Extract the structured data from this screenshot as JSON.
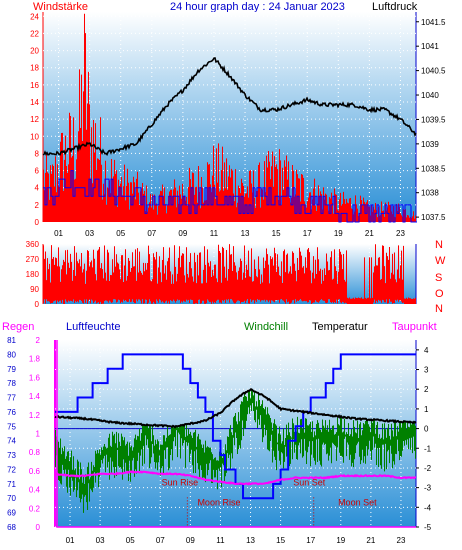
{
  "header": {
    "left_label": "Windstärke",
    "title": "24 hour graph day : 24 Januar 2023",
    "right_label": "Luftdruck"
  },
  "colors": {
    "wind": "#ff0000",
    "wind_gust": "#0000ff",
    "pressure": "#000000",
    "humidity": "#0000ff",
    "windchill": "#008000",
    "temperature": "#000000",
    "dewpoint": "#ff00ff",
    "rain": "#ff00ff",
    "gradient_top": "#ffffff",
    "gradient_bottom": "#2a8fd6"
  },
  "chart_data": [
    {
      "type": "line",
      "panel": "wind_pressure",
      "x_tick_labels": [
        "01",
        "03",
        "05",
        "07",
        "09",
        "11",
        "13",
        "15",
        "17",
        "19",
        "21",
        "23"
      ],
      "x_ticks_hours": [
        1,
        3,
        5,
        7,
        9,
        11,
        13,
        15,
        17,
        19,
        21,
        23
      ],
      "left_axis": {
        "ticks": [
          0,
          2,
          4,
          6,
          8,
          10,
          12,
          14,
          16,
          18,
          20,
          22,
          24
        ],
        "ylim": [
          0,
          24.5
        ]
      },
      "right_axis": {
        "ticks": [
          1037.5,
          1038,
          1038.5,
          1039,
          1039.5,
          1040,
          1040.5,
          1041,
          1041.5
        ],
        "ylim": [
          1037.4,
          1041.7
        ]
      },
      "series": [
        {
          "name": "Windstärke",
          "axis": "left",
          "kind": "gust",
          "x": [
            0,
            0.5,
            1,
            1.5,
            2,
            2.4,
            2.6,
            3,
            3.5,
            4,
            5,
            6,
            7,
            8,
            9,
            10,
            11,
            12,
            13,
            14,
            15,
            16,
            17,
            18,
            19,
            20,
            21,
            22,
            23,
            24
          ],
          "y": [
            7,
            6,
            9,
            11,
            12,
            16,
            24,
            14,
            12,
            8,
            6,
            5,
            3,
            4,
            5,
            6,
            8,
            7,
            5,
            6,
            8,
            6,
            5,
            4,
            3,
            3,
            2,
            2,
            2,
            1
          ]
        },
        {
          "name": "",
          "axis": "left",
          "kind": "mean",
          "x": [
            0,
            1,
            2,
            3,
            4,
            5,
            6,
            7,
            8,
            9,
            10,
            11,
            12,
            13,
            14,
            15,
            16,
            17,
            18,
            19,
            20,
            21,
            22,
            23,
            24
          ],
          "y": [
            3,
            4,
            5,
            4,
            4,
            3,
            3,
            2,
            2,
            2,
            3,
            3,
            2,
            2,
            3,
            3,
            3,
            2,
            2,
            1,
            1,
            1,
            1,
            1,
            0.5
          ]
        },
        {
          "name": "Luftdruck",
          "axis": "right",
          "x": [
            0,
            1,
            2,
            3,
            4,
            5,
            6,
            7,
            8,
            9,
            10,
            11,
            12,
            13,
            14,
            15,
            16,
            17,
            18,
            19,
            20,
            21,
            22,
            23,
            24
          ],
          "y": [
            1038.8,
            1038.8,
            1038.9,
            1039.0,
            1038.8,
            1038.9,
            1039.0,
            1039.4,
            1039.8,
            1040.1,
            1040.5,
            1040.75,
            1040.4,
            1040.0,
            1039.7,
            1039.7,
            1039.8,
            1039.9,
            1039.8,
            1039.8,
            1039.8,
            1039.7,
            1039.7,
            1039.5,
            1039.2
          ]
        }
      ]
    },
    {
      "type": "line",
      "panel": "wind_direction",
      "x_ticks_hours": [
        1,
        3,
        5,
        7,
        9,
        11,
        13,
        15,
        17,
        19,
        21,
        23
      ],
      "left_axis": {
        "ticks": [
          0,
          90,
          180,
          270,
          360
        ],
        "ylim": [
          0,
          360
        ]
      },
      "right_labels": [
        "N",
        "W",
        "S",
        "O",
        "N"
      ],
      "series": [
        {
          "name": "",
          "axis": "left",
          "kind": "noise",
          "y_low": 0,
          "y_high": 360
        }
      ]
    },
    {
      "type": "line",
      "panel": "temp_humidity",
      "x_tick_labels": [
        "01",
        "03",
        "05",
        "07",
        "09",
        "11",
        "13",
        "15",
        "17",
        "19",
        "21",
        "23"
      ],
      "x_ticks_hours": [
        1,
        3,
        5,
        7,
        9,
        11,
        13,
        15,
        17,
        19,
        21,
        23
      ],
      "labels_row": {
        "rain": "Regen",
        "humidity": "Luftfeuchte",
        "windchill": "Windchill",
        "temperature": "Temperatur",
        "dewpoint": "Taupunkt"
      },
      "left_axis_rain": {
        "ticks": [
          "0",
          "0.2",
          "0.4",
          "0.6",
          "0.8",
          "1",
          "1.2",
          "1.4",
          "1.6",
          "1.8",
          "2"
        ],
        "ylim": [
          0,
          2
        ]
      },
      "left_axis_humidity": {
        "ticks": [
          68,
          69,
          70,
          71,
          72,
          73,
          74,
          75,
          76,
          77,
          78,
          79,
          80,
          81
        ],
        "ylim": [
          68,
          81
        ]
      },
      "right_axis_temp": {
        "ticks": [
          -5,
          -4,
          -3,
          -2,
          -1,
          0,
          1,
          2,
          3,
          4
        ],
        "ylim": [
          -5,
          4.5
        ]
      },
      "series": [
        {
          "name": "Luftfeuchte",
          "axis": "humidity",
          "x": [
            0,
            1,
            1.5,
            2,
            2.5,
            3,
            3.5,
            4,
            4.5,
            8,
            8.5,
            9,
            9.5,
            10,
            10.5,
            11,
            11.3,
            12,
            12.5,
            13,
            14,
            14.5,
            15,
            15.5,
            16,
            16.5,
            17,
            17.5,
            18,
            18.5,
            19,
            24
          ],
          "y": [
            76,
            76,
            77,
            77,
            78,
            78,
            79,
            79,
            80,
            80,
            79,
            78,
            77,
            76,
            74,
            73,
            72,
            71,
            70,
            70,
            70,
            71,
            72,
            74,
            75,
            76,
            77,
            77,
            78,
            79,
            80,
            80
          ]
        },
        {
          "name": "Temperatur",
          "axis": "temp",
          "x": [
            0,
            2,
            4,
            6,
            8,
            10,
            11,
            12,
            13,
            14,
            15,
            16,
            18,
            20,
            22,
            24
          ],
          "y": [
            0.6,
            0.5,
            0.3,
            0.2,
            0.1,
            0.4,
            0.8,
            1.5,
            2.0,
            1.6,
            1.0,
            0.9,
            0.7,
            0.5,
            0.4,
            0.3
          ]
        },
        {
          "name": "Windchill",
          "axis": "temp",
          "x": [
            0,
            1,
            2,
            3,
            4,
            5,
            6,
            7,
            8,
            9,
            10,
            11,
            12,
            13,
            14,
            15,
            16,
            17,
            18,
            19,
            20,
            21,
            22,
            23
          ],
          "y": [
            -1,
            -2,
            -3,
            -1.5,
            -1,
            -1.5,
            -0.3,
            -1.3,
            0,
            -0.8,
            -1.5,
            -1.8,
            0,
            1.5,
            0.2,
            -1,
            -0.3,
            -0.5,
            -0.5,
            -0.2,
            -0.6,
            -0.2,
            -0.8,
            -0.3
          ]
        },
        {
          "name": "Taupunkt",
          "axis": "temp",
          "x": [
            0,
            1,
            2,
            3,
            4,
            5,
            6,
            7,
            8,
            9,
            10,
            11,
            12,
            13,
            14,
            15,
            16,
            17,
            18,
            19,
            20,
            21,
            22,
            23,
            24
          ],
          "y": [
            -2.3,
            -2.4,
            -2.4,
            -2.3,
            -2.3,
            -2.2,
            -2.2,
            -2.3,
            -2.3,
            -2.4,
            -2.6,
            -2.7,
            -2.8,
            -2.8,
            -2.8,
            -2.6,
            -2.5,
            -2.5,
            -2.5,
            -2.4,
            -2.4,
            -2.4,
            -2.4,
            -2.5,
            -2.5
          ]
        },
        {
          "name": "Regen",
          "axis": "rain",
          "x": [
            0,
            0.5,
            0.6,
            24
          ],
          "y": [
            0,
            0,
            0,
            0
          ]
        }
      ],
      "annotations": [
        {
          "text": "Sun Rise",
          "hour": 8.3,
          "value": -2.9,
          "axis": "temp"
        },
        {
          "text": "Sun Set",
          "hour": 16.9,
          "value": -2.9,
          "axis": "temp"
        },
        {
          "text": "Moon Rise",
          "hour": 10.9,
          "value": -3.9,
          "axis": "temp",
          "marker_hour": 8.8
        },
        {
          "text": "Moon Set",
          "hour": 20.1,
          "value": -3.9,
          "axis": "temp",
          "marker_hour": 17.2
        }
      ]
    }
  ]
}
